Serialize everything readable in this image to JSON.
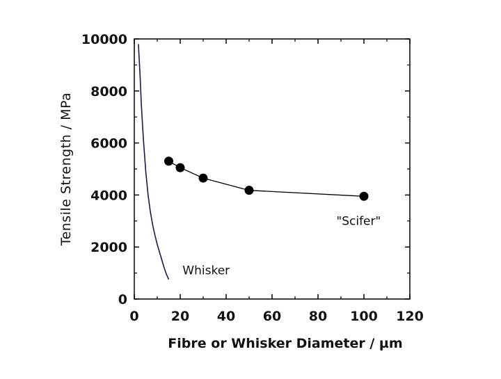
{
  "chart_data": {
    "type": "line",
    "title": "",
    "xlabel": "Fibre  or Whisker Diameter / µm",
    "ylabel": "Tensile Strength / MPa",
    "xlim": [
      0,
      120
    ],
    "ylim": [
      0,
      10000
    ],
    "x_ticks": [
      0,
      20,
      40,
      60,
      80,
      100,
      120
    ],
    "y_ticks": [
      0,
      2000,
      4000,
      6000,
      8000,
      10000
    ],
    "x_tick_labels": [
      "0",
      "20",
      "40",
      "60",
      "80",
      "100",
      "120"
    ],
    "y_tick_labels": [
      "0",
      "2000",
      "4000",
      "6000",
      "8000",
      "10000"
    ],
    "grid": false,
    "series": [
      {
        "name": "Whisker",
        "style": "line",
        "color": "#1a1a4a",
        "x": [
          1.8,
          2.5,
          3,
          3.5,
          4,
          5,
          6,
          7,
          8,
          9,
          10,
          11,
          12,
          13,
          14,
          15
        ],
        "y": [
          9800,
          8600,
          7600,
          6800,
          6100,
          4900,
          4000,
          3350,
          2850,
          2450,
          2100,
          1800,
          1500,
          1200,
          950,
          750
        ]
      },
      {
        "name": "\"Scifer\"",
        "style": "line-markers",
        "color": "#000000",
        "x": [
          15,
          20,
          30,
          50,
          100
        ],
        "y": [
          5300,
          5050,
          4650,
          4180,
          3950
        ]
      }
    ],
    "annotations": [
      {
        "text": "Whisker",
        "x": 21,
        "y": 950
      },
      {
        "text": "\"Scifer\"",
        "x": 88,
        "y": 2850
      }
    ]
  }
}
